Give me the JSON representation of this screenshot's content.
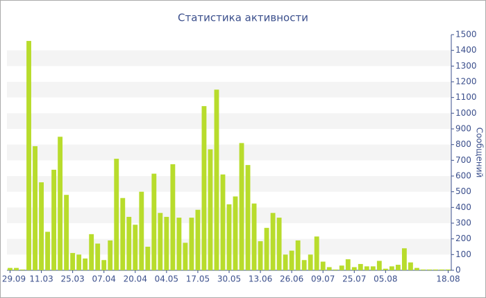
{
  "chart_data": {
    "type": "bar",
    "title": "Статистика активности",
    "y_label": "Сообщений",
    "categories": [
      "29.09",
      null,
      null,
      null,
      null,
      "11.03",
      null,
      null,
      null,
      null,
      "25.03",
      null,
      null,
      null,
      null,
      "07.04",
      null,
      null,
      null,
      null,
      "20.04",
      null,
      null,
      null,
      null,
      "04.05",
      null,
      null,
      null,
      null,
      "17.05",
      null,
      null,
      null,
      null,
      "30.05",
      null,
      null,
      null,
      null,
      "13.06",
      null,
      null,
      null,
      null,
      "26.06",
      null,
      null,
      null,
      null,
      "09.07",
      null,
      null,
      null,
      null,
      "25.07",
      null,
      null,
      null,
      null,
      "05.08",
      null,
      null,
      null,
      null,
      null,
      null,
      null,
      null,
      null,
      "18.08"
    ],
    "values": [
      15,
      15,
      5,
      1460,
      790,
      560,
      245,
      640,
      850,
      480,
      110,
      100,
      75,
      230,
      170,
      65,
      190,
      710,
      460,
      340,
      290,
      500,
      150,
      615,
      365,
      340,
      675,
      335,
      175,
      335,
      385,
      1045,
      770,
      1150,
      610,
      420,
      470,
      810,
      670,
      425,
      185,
      270,
      365,
      335,
      100,
      125,
      190,
      65,
      100,
      215,
      55,
      20,
      5,
      30,
      70,
      20,
      40,
      25,
      25,
      60,
      10,
      25,
      35,
      140,
      50,
      15,
      5,
      5,
      5,
      5,
      5
    ],
    "color": "#b8dc2c",
    "ylim": [
      0,
      1500
    ],
    "yticks": [
      0,
      100,
      200,
      300,
      400,
      500,
      600,
      700,
      800,
      900,
      1000,
      1100,
      1200,
      1300,
      1400,
      1500
    ],
    "grid": true
  }
}
